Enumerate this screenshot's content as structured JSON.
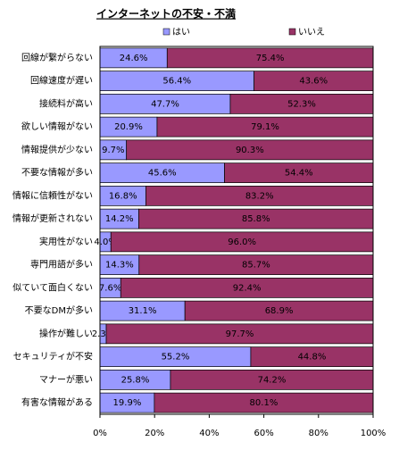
{
  "chart_data": {
    "type": "stacked-bar-horizontal",
    "title": "インターネットの不安・不満",
    "categories": [
      "回線が繋がらない",
      "回線速度が遅い",
      "接続料が高い",
      "欲しい情報がない",
      "情報提供が少ない",
      "不要な情報が多い",
      "情報に信頼性がない",
      "情報が更新されない",
      "実用性がない",
      "専門用語が多い",
      "似ていて面白くない",
      "不要なDMが多い",
      "操作が難しい",
      "セキュリティが不安",
      "マナーが悪い",
      "有害な情報がある"
    ],
    "series": [
      {
        "name": "はい",
        "color": "#9999ff",
        "values": [
          24.6,
          56.4,
          47.7,
          20.9,
          9.7,
          45.6,
          16.8,
          14.2,
          4.0,
          14.3,
          7.6,
          31.1,
          2.3,
          55.2,
          25.8,
          19.9
        ],
        "value_labels": [
          "24.6%",
          "56.4%",
          "47.7%",
          "20.9%",
          "9.7%",
          "45.6%",
          "16.8%",
          "14.2%",
          "4.0%",
          "14.3%",
          "7.6%",
          "31.1%",
          "2.3%",
          "55.2%",
          "25.8%",
          "19.9%"
        ]
      },
      {
        "name": "いいえ",
        "color": "#993366",
        "values": [
          75.4,
          43.6,
          52.3,
          79.1,
          90.3,
          54.4,
          83.2,
          85.8,
          96.0,
          85.7,
          92.4,
          68.9,
          97.7,
          44.8,
          74.2,
          80.1
        ],
        "value_labels": [
          "75.4%",
          "43.6%",
          "52.3%",
          "79.1%",
          "90.3%",
          "54.4%",
          "83.2%",
          "85.8%",
          "96.0%",
          "85.7%",
          "92.4%",
          "68.9%",
          "97.7%",
          "44.8%",
          "74.2%",
          "80.1%"
        ]
      }
    ],
    "xlim": [
      0,
      100
    ],
    "xticks": [
      {
        "value": 0,
        "label": "0%"
      },
      {
        "value": 20,
        "label": "20%"
      },
      {
        "value": 40,
        "label": "40%"
      },
      {
        "value": 60,
        "label": "60%"
      },
      {
        "value": 80,
        "label": "80%"
      },
      {
        "value": 100,
        "label": "100%"
      }
    ],
    "legend": "top"
  }
}
